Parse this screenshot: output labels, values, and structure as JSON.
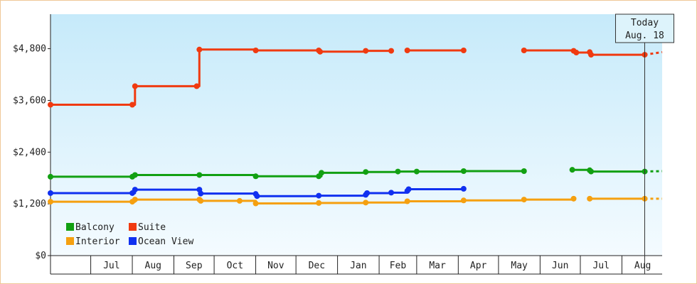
{
  "chart_data": {
    "type": "line",
    "line_style": "step",
    "ylim": [
      0,
      5600
    ],
    "y_ticks": [
      0,
      1200,
      2400,
      3600,
      4800
    ],
    "y_tick_labels": [
      "$0",
      "$1,200",
      "$2,400",
      "$3,600",
      "$4,800"
    ],
    "x_start": "2024-06-01",
    "x_end": "2025-08-31",
    "x_month_labels": [
      "Jul",
      "Aug",
      "Sep",
      "Oct",
      "Nov",
      "Dec",
      "Jan",
      "Feb",
      "Mar",
      "Apr",
      "May",
      "Jun",
      "Jul",
      "Aug"
    ],
    "grid": false,
    "background": "light blue gradient",
    "today": {
      "label_1": "Today",
      "label_2": "Aug. 18",
      "date": "2025-08-18"
    },
    "legend_position": "bottom-left",
    "series": [
      {
        "name": "Balcony",
        "color": "#12a012",
        "segments": [
          [
            [
              "2024-06-01",
              1830
            ],
            [
              "2024-08-01",
              1830
            ],
            [
              "2024-08-03",
              1870
            ],
            [
              "2024-09-20",
              1870
            ],
            [
              "2024-11-01",
              1840
            ],
            [
              "2024-12-18",
              1840
            ],
            [
              "2024-12-20",
              1920
            ],
            [
              "2025-01-22",
              1940
            ],
            [
              "2025-02-15",
              1950
            ],
            [
              "2025-03-01",
              1950
            ],
            [
              "2025-04-05",
              1960
            ],
            [
              "2025-05-20",
              1960
            ]
          ],
          [
            [
              "2025-06-25",
              1990
            ],
            [
              "2025-07-08",
              1980
            ],
            [
              "2025-07-09",
              1950
            ],
            [
              "2025-08-18",
              1950
            ]
          ]
        ],
        "projection": [
          [
            "2025-08-18",
            1950
          ],
          [
            "2025-08-31",
            1960
          ]
        ]
      },
      {
        "name": "Suite",
        "color": "#f03a10",
        "segments": [
          [
            [
              "2024-06-01",
              3500
            ],
            [
              "2024-08-01",
              3500
            ],
            [
              "2024-08-03",
              3930
            ],
            [
              "2024-09-18",
              3930
            ],
            [
              "2024-09-20",
              4780
            ],
            [
              "2024-11-01",
              4760
            ],
            [
              "2024-12-18",
              4760
            ],
            [
              "2024-12-19",
              4730
            ],
            [
              "2025-01-22",
              4750
            ],
            [
              "2025-02-10",
              4750
            ]
          ],
          [
            [
              "2025-02-22",
              4760
            ],
            [
              "2025-04-05",
              4760
            ]
          ],
          [
            [
              "2025-05-20",
              4760
            ],
            [
              "2025-06-26",
              4750
            ],
            [
              "2025-06-28",
              4710
            ],
            [
              "2025-07-08",
              4720
            ],
            [
              "2025-07-09",
              4660
            ],
            [
              "2025-08-18",
              4660
            ]
          ]
        ],
        "projection": [
          [
            "2025-08-18",
            4660
          ],
          [
            "2025-08-31",
            4720
          ]
        ]
      },
      {
        "name": "Interior",
        "color": "#f5a010",
        "segments": [
          [
            [
              "2024-06-01",
              1250
            ],
            [
              "2024-08-01",
              1250
            ],
            [
              "2024-08-03",
              1300
            ],
            [
              "2024-09-20",
              1300
            ],
            [
              "2024-09-21",
              1270
            ],
            [
              "2024-10-20",
              1270
            ],
            [
              "2024-11-01",
              1210
            ],
            [
              "2024-12-18",
              1220
            ],
            [
              "2025-01-22",
              1230
            ],
            [
              "2025-02-22",
              1260
            ],
            [
              "2025-04-05",
              1280
            ],
            [
              "2025-05-20",
              1300
            ],
            [
              "2025-06-26",
              1320
            ]
          ],
          [
            [
              "2025-07-08",
              1320
            ],
            [
              "2025-08-18",
              1320
            ]
          ]
        ],
        "projection": [
          [
            "2025-08-18",
            1320
          ],
          [
            "2025-08-31",
            1320
          ]
        ]
      },
      {
        "name": "Ocean View",
        "color": "#1030f0",
        "segments": [
          [
            [
              "2024-06-01",
              1450
            ],
            [
              "2024-08-01",
              1450
            ],
            [
              "2024-08-03",
              1530
            ],
            [
              "2024-09-20",
              1530
            ],
            [
              "2024-09-21",
              1440
            ],
            [
              "2024-11-01",
              1430
            ],
            [
              "2024-11-02",
              1380
            ],
            [
              "2024-12-18",
              1390
            ],
            [
              "2025-01-22",
              1410
            ],
            [
              "2025-01-23",
              1450
            ],
            [
              "2025-02-10",
              1460
            ],
            [
              "2025-02-22",
              1500
            ],
            [
              "2025-02-23",
              1540
            ],
            [
              "2025-04-05",
              1550
            ]
          ]
        ],
        "projection": []
      }
    ]
  }
}
